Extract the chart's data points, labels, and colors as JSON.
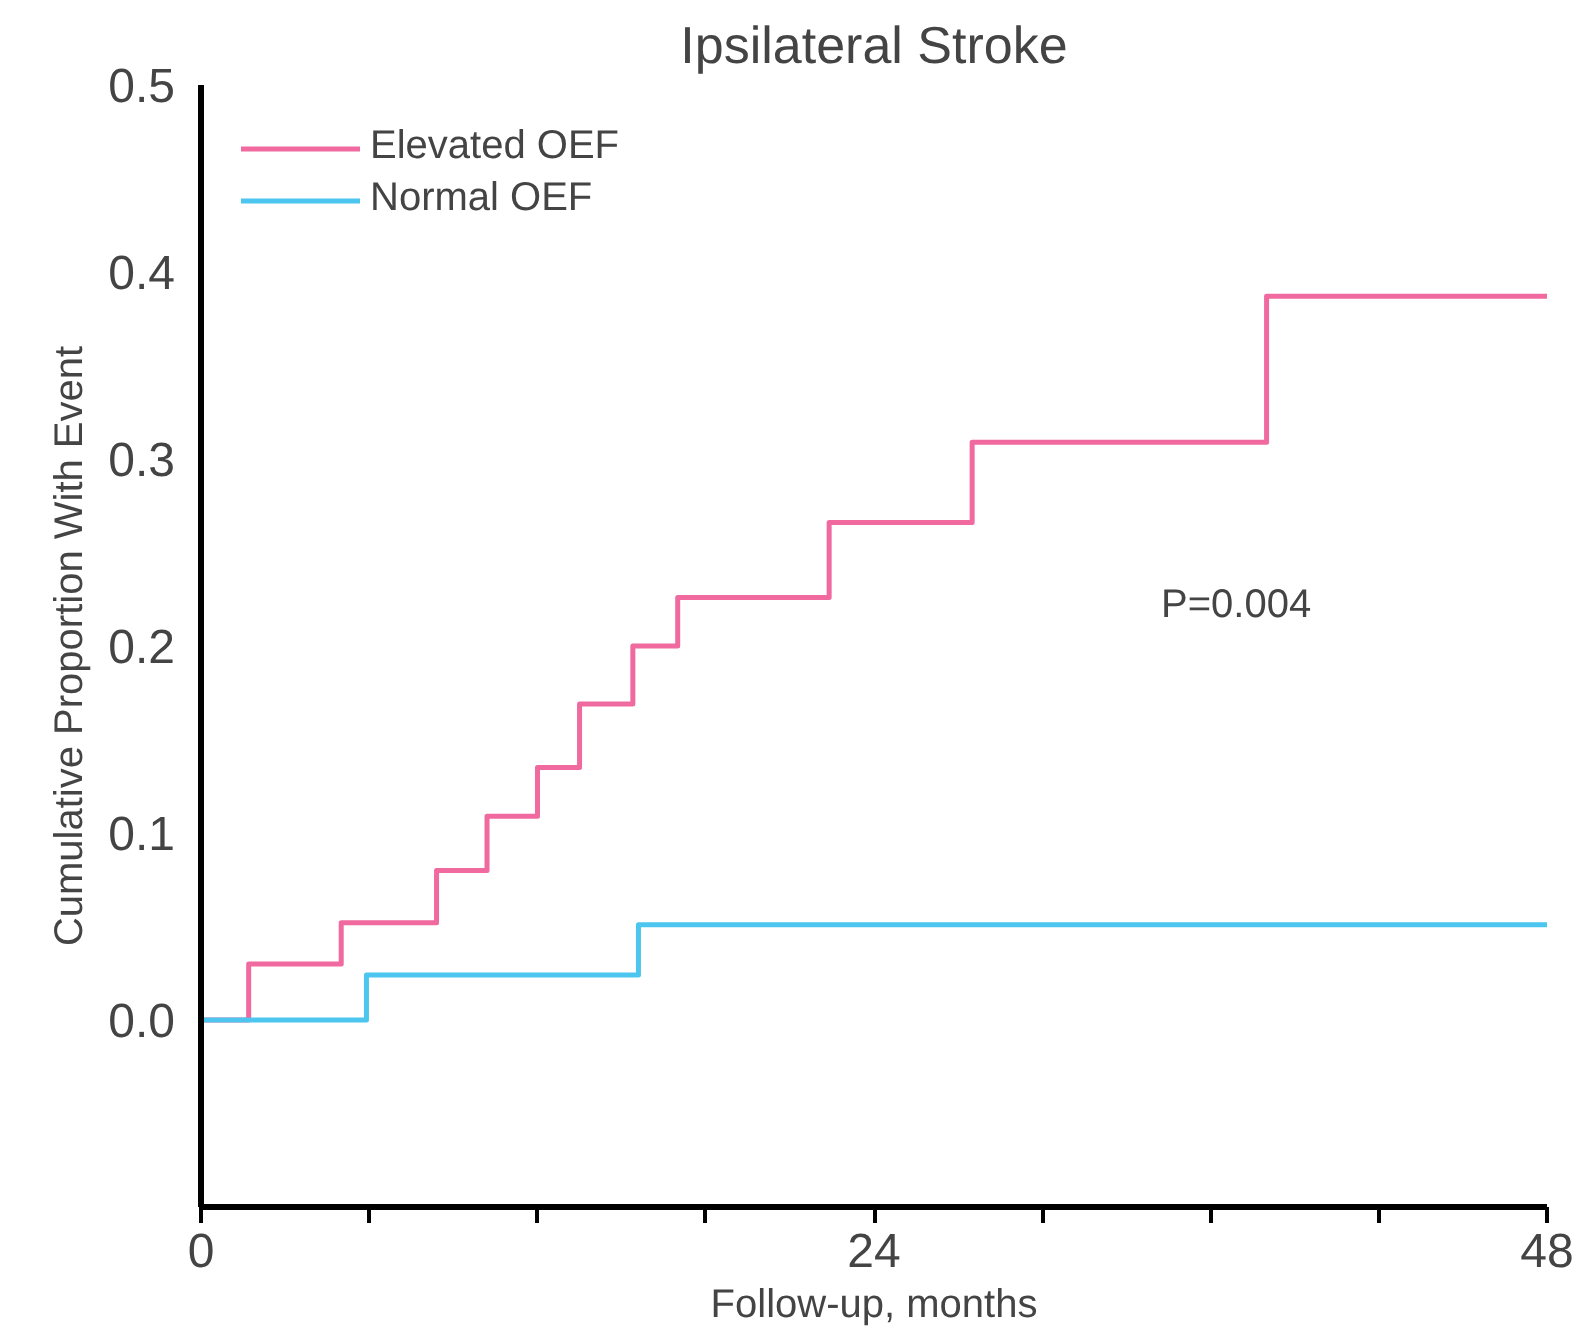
{
  "chart_data": {
    "type": "step",
    "title": "Ipsilateral Stroke",
    "xlabel": "Follow-up, months",
    "ylabel": "Cumulative Proportion With Event",
    "series": [
      {
        "name": "Elevated OEF",
        "color": "#f06aa0",
        "x": [
          0,
          1.7,
          5.0,
          8.4,
          10.2,
          12.0,
          13.5,
          15.4,
          17.0,
          22.4,
          27.5,
          38.0,
          48
        ],
        "values": [
          0,
          0.03,
          0.052,
          0.08,
          0.109,
          0.135,
          0.169,
          0.2,
          0.226,
          0.266,
          0.309,
          0.387,
          0.387
        ]
      },
      {
        "name": "Normal OEF",
        "color": "#4cc6ef",
        "x": [
          0,
          5.9,
          15.6,
          48
        ],
        "values": [
          0,
          0.024,
          0.051,
          0.051
        ]
      }
    ],
    "xlim": [
      0,
      48
    ],
    "ylim": [
      -0.1,
      0.5
    ],
    "xticks": [
      0,
      {
        "value": 6,
        "label": null
      },
      {
        "value": 12,
        "label": null
      },
      {
        "value": 18,
        "label": null
      },
      24,
      {
        "value": 30,
        "label": null
      },
      {
        "value": 36,
        "label": null
      },
      {
        "value": 42,
        "label": null
      },
      48
    ],
    "yticks": [
      {
        "value": 0,
        "label": "0.0"
      },
      0.1,
      0.2,
      0.3,
      0.4,
      0.5
    ],
    "annotations": [
      "P=0.004"
    ],
    "legend": "top left",
    "grid": false,
    "line_style": "solid"
  }
}
